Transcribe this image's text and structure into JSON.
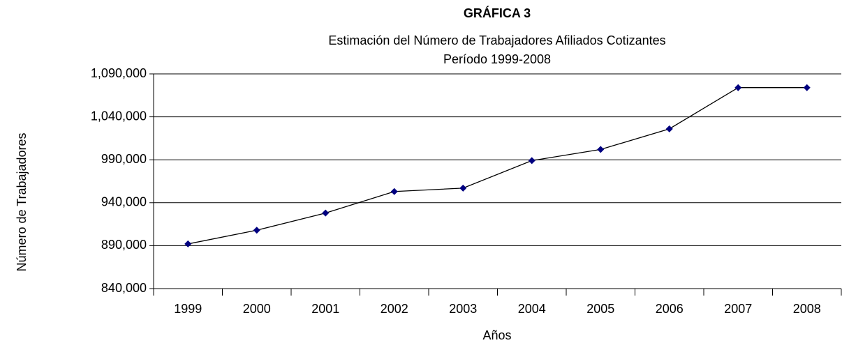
{
  "chart_data": {
    "type": "line",
    "title": "GRÁFICA 3",
    "subtitle": [
      "Estimación del Número de Trabajadores Afiliados Cotizantes",
      "Período 1999-2008"
    ],
    "x_label": "Años",
    "y_label": "Número de Trabajadores",
    "categories": [
      "1999",
      "2000",
      "2001",
      "2002",
      "2003",
      "2004",
      "2005",
      "2006",
      "2007",
      "2008"
    ],
    "series": [
      {
        "color": "#000080",
        "values": [
          892000,
          908000,
          928000,
          953000,
          957000,
          989000,
          1002000,
          1026000,
          1074000,
          1074000
        ]
      }
    ],
    "ylim": [
      840000,
      1090000
    ],
    "yticks": [
      {
        "value": 840000,
        "label": "840,000"
      },
      {
        "value": 890000,
        "label": "890,000"
      },
      {
        "value": 940000,
        "label": "940,000"
      },
      {
        "value": 990000,
        "label": "990,000"
      },
      {
        "value": 1040000,
        "label": "1,040,000"
      },
      {
        "value": 1090000,
        "label": "1,090,000"
      }
    ],
    "grid": true
  }
}
